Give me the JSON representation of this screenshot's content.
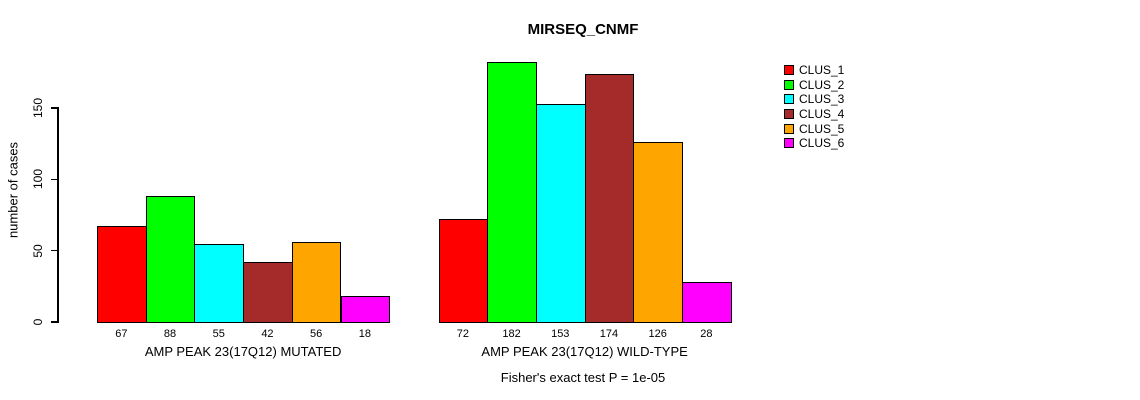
{
  "chart_data": {
    "type": "bar",
    "title": "MIRSEQ_CNMF",
    "ylabel": "number of cases",
    "caption": "Fisher's exact test P = 1e-05",
    "yticks": [
      0,
      50,
      100,
      150
    ],
    "ylim": [
      0,
      182
    ],
    "grid": false,
    "legend_position": "right",
    "series": [
      "CLUS_1",
      "CLUS_2",
      "CLUS_3",
      "CLUS_4",
      "CLUS_5",
      "CLUS_6"
    ],
    "colors": [
      "#FF0000",
      "#00FF00",
      "#00FFFF",
      "#A52A2A",
      "#FFA500",
      "#FF00FF"
    ],
    "groups": [
      {
        "label": "AMP PEAK 23(17Q12) MUTATED",
        "values": [
          67,
          88,
          55,
          42,
          56,
          18
        ]
      },
      {
        "label": "AMP PEAK 23(17Q12) WILD-TYPE",
        "values": [
          72,
          182,
          153,
          174,
          126,
          28
        ]
      }
    ]
  }
}
